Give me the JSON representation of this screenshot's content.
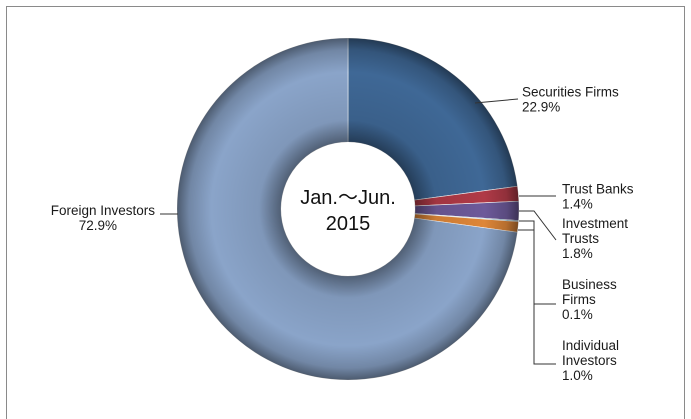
{
  "chart_data": {
    "type": "pie",
    "center_label": [
      "Jan.～Jun.",
      "2015"
    ],
    "slices": [
      {
        "name": "Securities Firms",
        "value": 22.9,
        "label_lines": [
          "Securities Firms",
          "22.9%"
        ],
        "color": "#3f6896"
      },
      {
        "name": "Trust Banks",
        "value": 1.4,
        "label_lines": [
          "Trust Banks",
          "1.4%"
        ],
        "color": "#b03a47"
      },
      {
        "name": "Investment Trusts",
        "value": 1.8,
        "label_lines": [
          "Investment",
          "Trusts",
          "1.8%"
        ],
        "color": "#6d5a9a"
      },
      {
        "name": "Business Firms",
        "value": 0.1,
        "label_lines": [
          "Business",
          "Firms",
          "0.1%"
        ],
        "color": "#4f9db3"
      },
      {
        "name": "Individual Investors",
        "value": 1.0,
        "label_lines": [
          "Individual",
          "Investors",
          "1.0%"
        ],
        "color": "#de8638"
      },
      {
        "name": "Foreign Investors",
        "value": 72.9,
        "label_lines": [
          "Foreign Investors",
          "72.9%"
        ],
        "color": "#8aa4c9"
      }
    ]
  }
}
